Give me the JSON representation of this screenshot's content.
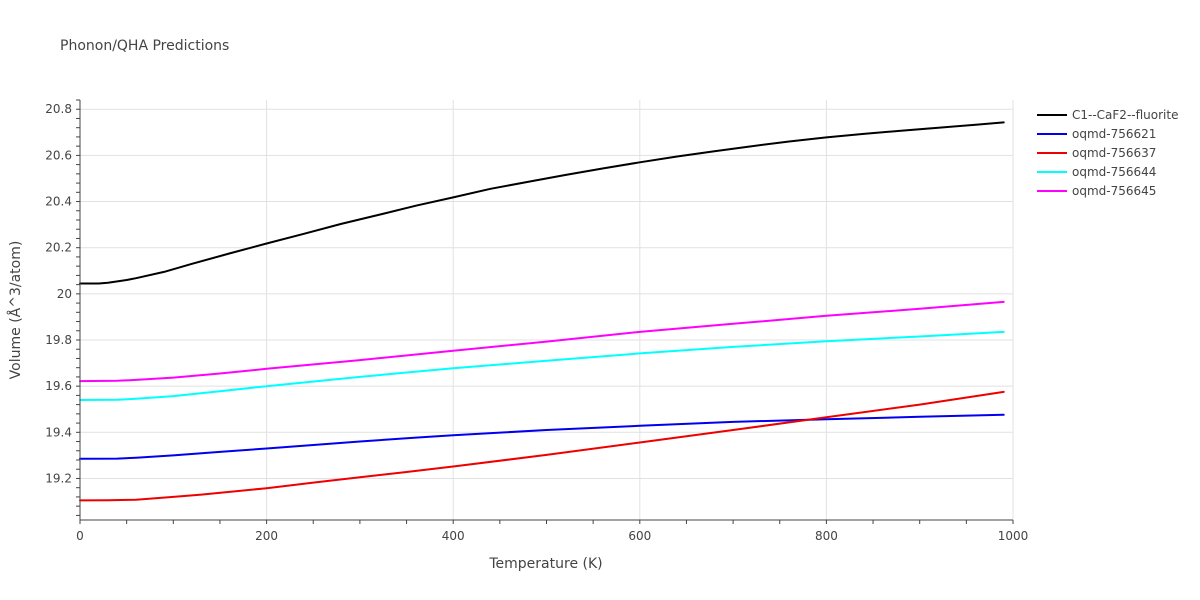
{
  "chart_data": {
    "type": "line",
    "title": "Phonon/QHA Predictions",
    "xlabel": "Temperature (K)",
    "ylabel": "Volume (Å^3/atom)",
    "xlim": [
      0,
      1000
    ],
    "ylim": [
      19.02,
      20.84
    ],
    "xticks": [
      0,
      200,
      400,
      600,
      800,
      1000
    ],
    "yticks": [
      19.2,
      19.4,
      19.6,
      19.8,
      20,
      20.2,
      20.4,
      20.6,
      20.8
    ],
    "legend_position": "top-right",
    "series": [
      {
        "name": "C1--CaF2--fluorite",
        "color": "#000000",
        "x": [
          0,
          20,
          30,
          50,
          60,
          90,
          120,
          160,
          200,
          240,
          280,
          320,
          360,
          400,
          440,
          480,
          520,
          560,
          600,
          640,
          680,
          720,
          760,
          800,
          840,
          880,
          920,
          960,
          990
        ],
        "y": [
          20.045,
          20.045,
          20.048,
          20.06,
          20.068,
          20.095,
          20.13,
          20.175,
          20.218,
          20.26,
          20.303,
          20.342,
          20.382,
          20.418,
          20.455,
          20.485,
          20.515,
          20.543,
          20.57,
          20.595,
          20.618,
          20.64,
          20.66,
          20.678,
          20.693,
          20.707,
          20.72,
          20.733,
          20.743
        ]
      },
      {
        "name": "oqmd-756621",
        "color": "#0000ee",
        "x": [
          0,
          40,
          60,
          100,
          150,
          200,
          250,
          300,
          360,
          400,
          500,
          600,
          700,
          800,
          900,
          990
        ],
        "y": [
          19.285,
          19.286,
          19.29,
          19.3,
          19.315,
          19.33,
          19.345,
          19.36,
          19.377,
          19.387,
          19.41,
          19.428,
          19.445,
          19.457,
          19.467,
          19.476
        ]
      },
      {
        "name": "oqmd-756637",
        "color": "#ee0000",
        "x": [
          0,
          30,
          60,
          100,
          130,
          200,
          250,
          300,
          350,
          400,
          500,
          600,
          700,
          800,
          900,
          990
        ],
        "y": [
          19.105,
          19.106,
          19.108,
          19.12,
          19.13,
          19.158,
          19.182,
          19.205,
          19.228,
          19.252,
          19.302,
          19.356,
          19.41,
          19.465,
          19.52,
          19.575
        ]
      },
      {
        "name": "oqmd-756644",
        "color": "#00ffff",
        "x": [
          0,
          40,
          60,
          100,
          150,
          200,
          300,
          400,
          500,
          600,
          700,
          800,
          900,
          990
        ],
        "y": [
          19.54,
          19.541,
          19.545,
          19.557,
          19.578,
          19.6,
          19.64,
          19.678,
          19.71,
          19.742,
          19.77,
          19.795,
          19.815,
          19.835
        ]
      },
      {
        "name": "oqmd-756645",
        "color": "#ff00ff",
        "x": [
          0,
          40,
          60,
          100,
          150,
          200,
          300,
          400,
          500,
          600,
          700,
          800,
          900,
          990
        ],
        "y": [
          19.622,
          19.623,
          19.627,
          19.637,
          19.655,
          19.675,
          19.713,
          19.753,
          19.793,
          19.835,
          19.87,
          19.905,
          19.935,
          19.965
        ]
      }
    ]
  }
}
